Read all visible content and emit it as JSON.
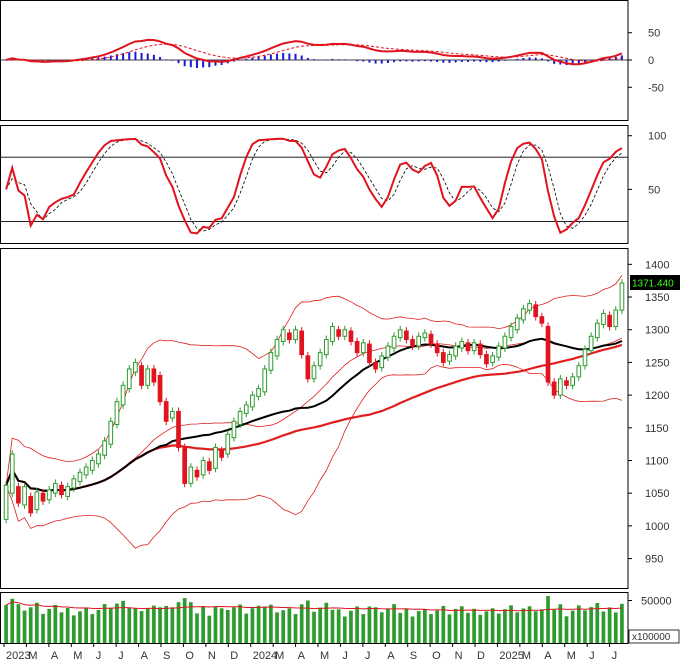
{
  "chart_data": {
    "type": "candlestick",
    "instrument": "",
    "last_price": "1371.440",
    "colors": {
      "up": "#2e9b2e",
      "down": "#e0141e",
      "sma_long": "#e01e1e",
      "sma_mid": "#000000",
      "bollinger": "#e01e1e",
      "macd_hist": "#1a1ad4",
      "volume": "#2e9b2e",
      "last_price_bg": "#000000",
      "last_price_fg": "#39ff14"
    },
    "x_axis": {
      "labels": [
        "2023",
        "M",
        "A",
        "M",
        "J",
        "J",
        "A",
        "S",
        "O",
        "N",
        "D",
        "2024",
        "M",
        "A",
        "M",
        "J",
        "J",
        "A",
        "S",
        "O",
        "N",
        "D",
        "2025",
        "M",
        "A",
        "M",
        "J",
        "J"
      ]
    },
    "panels": {
      "macd": {
        "yticks": [
          50,
          0,
          -50
        ],
        "ylim": [
          -110,
          110
        ]
      },
      "stochastic": {
        "yticks": [
          100,
          50
        ],
        "levels": [
          80,
          20
        ],
        "ylim": [
          0,
          110
        ]
      },
      "price": {
        "yticks": [
          1400,
          1350,
          1300,
          1250,
          1200,
          1150,
          1100,
          1050,
          1000,
          950
        ],
        "ylim": [
          905,
          1425
        ]
      },
      "volume": {
        "yticks": [
          "50000"
        ],
        "multiplier_label": "x100000",
        "ylim": [
          0,
          60000
        ]
      }
    },
    "price_series": [
      [
        1010,
        1062
      ],
      [
        1050,
        1110
      ],
      [
        1060,
        1035
      ],
      [
        1032,
        1060
      ],
      [
        1045,
        1020
      ],
      [
        1025,
        1052
      ],
      [
        1050,
        1038
      ],
      [
        1040,
        1055
      ],
      [
        1050,
        1065
      ],
      [
        1062,
        1048
      ],
      [
        1045,
        1060
      ],
      [
        1058,
        1072
      ],
      [
        1068,
        1082
      ],
      [
        1078,
        1090
      ],
      [
        1085,
        1100
      ],
      [
        1095,
        1110
      ],
      [
        1108,
        1130
      ],
      [
        1125,
        1160
      ],
      [
        1155,
        1190
      ],
      [
        1185,
        1215
      ],
      [
        1210,
        1240
      ],
      [
        1235,
        1250
      ],
      [
        1245,
        1215
      ],
      [
        1215,
        1240
      ],
      [
        1240,
        1220
      ],
      [
        1230,
        1190
      ],
      [
        1190,
        1160
      ],
      [
        1165,
        1175
      ],
      [
        1175,
        1120
      ],
      [
        1120,
        1065
      ],
      [
        1065,
        1090
      ],
      [
        1085,
        1075
      ],
      [
        1078,
        1100
      ],
      [
        1098,
        1085
      ],
      [
        1088,
        1120
      ],
      [
        1115,
        1105
      ],
      [
        1110,
        1140
      ],
      [
        1135,
        1160
      ],
      [
        1155,
        1175
      ],
      [
        1172,
        1185
      ],
      [
        1182,
        1200
      ],
      [
        1198,
        1210
      ],
      [
        1205,
        1240
      ],
      [
        1238,
        1265
      ],
      [
        1260,
        1285
      ],
      [
        1282,
        1300
      ],
      [
        1295,
        1285
      ],
      [
        1285,
        1300
      ],
      [
        1298,
        1262
      ],
      [
        1260,
        1225
      ],
      [
        1225,
        1245
      ],
      [
        1245,
        1265
      ],
      [
        1262,
        1285
      ],
      [
        1282,
        1305
      ],
      [
        1300,
        1290
      ],
      [
        1290,
        1300
      ],
      [
        1298,
        1282
      ],
      [
        1282,
        1265
      ],
      [
        1265,
        1280
      ],
      [
        1278,
        1250
      ],
      [
        1250,
        1240
      ],
      [
        1242,
        1260
      ],
      [
        1258,
        1275
      ],
      [
        1272,
        1290
      ],
      [
        1288,
        1300
      ],
      [
        1298,
        1285
      ],
      [
        1285,
        1275
      ],
      [
        1275,
        1290
      ],
      [
        1288,
        1295
      ],
      [
        1293,
        1278
      ],
      [
        1278,
        1265
      ],
      [
        1265,
        1250
      ],
      [
        1252,
        1262
      ],
      [
        1260,
        1275
      ],
      [
        1272,
        1282
      ],
      [
        1280,
        1268
      ],
      [
        1268,
        1280
      ],
      [
        1278,
        1262
      ],
      [
        1262,
        1248
      ],
      [
        1250,
        1260
      ],
      [
        1258,
        1275
      ],
      [
        1272,
        1290
      ],
      [
        1288,
        1305
      ],
      [
        1300,
        1318
      ],
      [
        1315,
        1332
      ],
      [
        1330,
        1340
      ],
      [
        1338,
        1320
      ],
      [
        1320,
        1310
      ],
      [
        1305,
        1220
      ],
      [
        1220,
        1200
      ],
      [
        1200,
        1225
      ],
      [
        1222,
        1215
      ],
      [
        1215,
        1228
      ],
      [
        1228,
        1245
      ],
      [
        1245,
        1270
      ],
      [
        1268,
        1290
      ],
      [
        1288,
        1310
      ],
      [
        1308,
        1325
      ],
      [
        1322,
        1305
      ],
      [
        1305,
        1330
      ],
      [
        1330,
        1371.44
      ]
    ]
  }
}
